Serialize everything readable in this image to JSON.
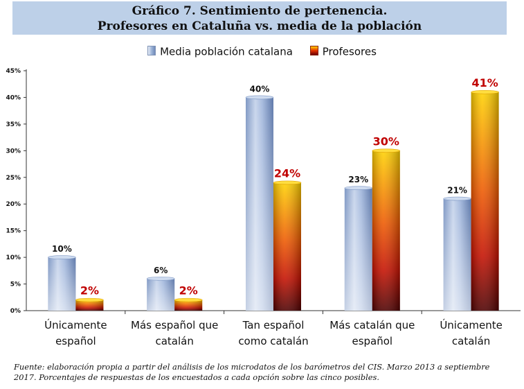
{
  "title": {
    "line1": "Gráfico 7. Sentimiento de pertenencia.",
    "line2": "Profesores en Cataluña vs. media de la población"
  },
  "footer": "Fuente: elaboración propia a partir del análisis de los microdatos de los barómetros del CIS. Marzo 2013 a septiembre 2017. Porcentajes de respuestas de los encuestados a cada opción sobre las cinco posibles.",
  "colors": {
    "profesores_label": "#c00000",
    "poblacion_label": "#111111"
  },
  "chart_data": {
    "type": "bar",
    "title": "Gráfico 7. Sentimiento de pertenencia. Profesores en Cataluña vs. media de la población",
    "categories": [
      [
        "Únicamente",
        "español"
      ],
      [
        "Más español que",
        "catalán"
      ],
      [
        "Tan español",
        "como catalán"
      ],
      [
        "Más catalán que",
        "español"
      ],
      [
        "Únicamente",
        "catalán"
      ]
    ],
    "series": [
      {
        "name": "Media población catalana",
        "values": [
          10,
          6,
          40,
          23,
          21
        ],
        "labels": [
          "10%",
          "6%",
          "40%",
          "23%",
          "21%"
        ]
      },
      {
        "name": "Profesores",
        "values": [
          2,
          2,
          24,
          30,
          41
        ],
        "labels": [
          "2%",
          "2%",
          "24%",
          "30%",
          "41%"
        ]
      }
    ],
    "yticks": [
      "0%",
      "5%",
      "10%",
      "15%",
      "20%",
      "25%",
      "30%",
      "35%",
      "40%",
      "45%"
    ],
    "ylim": [
      0,
      45
    ],
    "xlabel": "",
    "ylabel": "",
    "legend": "top-center",
    "grid": false
  }
}
